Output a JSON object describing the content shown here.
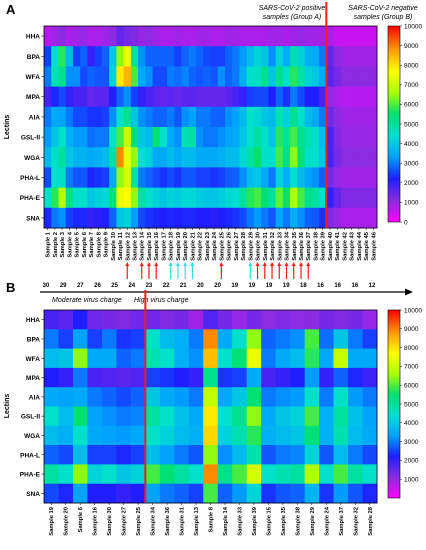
{
  "figure": {
    "panel_a_label": "A",
    "panel_b_label": "B",
    "group_a_label_line1": "SARS-CoV-2 positive",
    "group_a_label_line2": "samples (Group A)",
    "group_b_label_line1": "SARS-CoV-2 negative",
    "group_b_label_line2": "samples (Group B)",
    "moderate_label": "Moderate virus charge",
    "high_label": "High virus charge"
  },
  "palette": {
    "stops": [
      "#ff00ff",
      "#8a2be2",
      "#1e1eff",
      "#00a0ff",
      "#00e0d0",
      "#00e070",
      "#aaff00",
      "#ffff00",
      "#ff9900",
      "#ff0000"
    ],
    "marker_red": "#ff1a1a",
    "marker_cyan": "#33dddd"
  },
  "chart_data": [
    {
      "type": "heatmap",
      "ylabel": "Lectins",
      "rows": [
        "HHA",
        "BPA",
        "WFA",
        "MPA",
        "AIA",
        "GSL-II",
        "WGA",
        "PHA-L",
        "PHA-E",
        "SNA"
      ],
      "columns": [
        "Sample 1",
        "Sample 2",
        "Sample 3",
        "Sample 4",
        "Sample 5",
        "Sample 6",
        "Sample 7",
        "Sample 8",
        "Sample 9",
        "Sample 10",
        "Sample 11",
        "Sample 12",
        "Sample 13",
        "Sample 14",
        "Sample 15",
        "Sample 16",
        "Sample 17",
        "Sample 18",
        "Sample 19",
        "Sample 20",
        "Sample 21",
        "Sample 22",
        "Sample 23",
        "Sample 24",
        "Sample 25",
        "Sample 26",
        "Sample 27",
        "Sample 28",
        "Sample 29",
        "Sample 30",
        "Sample 31",
        "Sample 32",
        "Sample 33",
        "Sample 34",
        "Sample 35",
        "Sample 36",
        "Sample 37",
        "Sample 38",
        "Sample 39",
        "Sample 40",
        "Sample 41",
        "Sample 42",
        "Sample 43",
        "Sample 44",
        "Sample 45",
        "Sample 46"
      ],
      "colorbar": {
        "min": 0,
        "max": 10000,
        "ticks": [
          0,
          1000,
          2000,
          3000,
          4000,
          5000,
          6000,
          7000,
          8000,
          9000,
          10000
        ]
      },
      "group_split_after_column": 39,
      "values": [
        [
          700,
          900,
          1100,
          800,
          900,
          1000,
          800,
          800,
          900,
          1100,
          1500,
          1300,
          1200,
          1000,
          1100,
          900,
          800,
          800,
          900,
          800,
          800,
          900,
          900,
          800,
          800,
          900,
          900,
          800,
          800,
          800,
          800,
          900,
          900,
          800,
          900,
          1000,
          900,
          900,
          900,
          800,
          500,
          500,
          500,
          500,
          500,
          500
        ],
        [
          2500,
          4500,
          5800,
          3800,
          2500,
          2800,
          2000,
          2500,
          2800,
          4000,
          6500,
          7500,
          5000,
          3200,
          2800,
          2800,
          2800,
          2800,
          2500,
          2800,
          3000,
          2800,
          2600,
          2500,
          2500,
          2800,
          3000,
          3300,
          3800,
          4200,
          4000,
          3200,
          4200,
          3600,
          4800,
          4200,
          3600,
          3500,
          3000,
          1500,
          1100,
          900,
          900,
          900,
          900,
          900
        ],
        [
          3000,
          4800,
          5200,
          3200,
          3200,
          2600,
          2800,
          2700,
          2700,
          4200,
          8000,
          8600,
          6000,
          3500,
          3200,
          2600,
          2600,
          3000,
          2900,
          3100,
          2800,
          2700,
          2800,
          2700,
          3200,
          2800,
          3000,
          3600,
          4500,
          4600,
          5200,
          4000,
          5200,
          4500,
          5800,
          5000,
          4200,
          4000,
          3500,
          1600,
          1300,
          1100,
          1100,
          1100,
          1100,
          1100
        ],
        [
          1800,
          2300,
          2600,
          2000,
          1800,
          1800,
          1500,
          1600,
          1600,
          2200,
          2800,
          3200,
          2500,
          2000,
          1800,
          1600,
          1500,
          1600,
          1500,
          1600,
          1600,
          1500,
          1500,
          1500,
          1500,
          1600,
          1800,
          2000,
          2500,
          2600,
          2600,
          2200,
          2800,
          2400,
          3000,
          2600,
          2200,
          2200,
          1800,
          1000,
          800,
          700,
          700,
          700,
          700,
          700
        ],
        [
          3000,
          3500,
          3400,
          3000,
          2600,
          2600,
          2400,
          2400,
          2500,
          3200,
          4500,
          5200,
          4000,
          3200,
          3000,
          2800,
          2800,
          3000,
          2700,
          3200,
          3400,
          3000,
          3000,
          2800,
          2800,
          3200,
          3400,
          3800,
          4500,
          4300,
          4000,
          3800,
          4800,
          4200,
          5200,
          4500,
          3800,
          3500,
          3000,
          1400,
          1100,
          900,
          900,
          900,
          900,
          900
        ],
        [
          3300,
          4000,
          4500,
          3600,
          3300,
          3300,
          2900,
          3000,
          3000,
          4500,
          6000,
          7000,
          5500,
          4000,
          3800,
          5500,
          4500,
          3500,
          3200,
          4800,
          5000,
          3200,
          3000,
          3000,
          3200,
          3400,
          3500,
          4000,
          4500,
          5000,
          4500,
          4000,
          5800,
          5000,
          6000,
          5200,
          4800,
          4500,
          3800,
          1800,
          1200,
          1000,
          1000,
          1000,
          1000,
          1000
        ],
        [
          3800,
          4500,
          5000,
          4000,
          3700,
          3700,
          3500,
          3600,
          3800,
          5000,
          9000,
          7500,
          6500,
          4500,
          4200,
          3500,
          3500,
          3800,
          3500,
          3800,
          3800,
          3500,
          3500,
          3500,
          3600,
          3800,
          3800,
          4300,
          5000,
          5600,
          4600,
          4500,
          6000,
          5200,
          6500,
          5500,
          4500,
          4500,
          4000,
          1800,
          1300,
          1100,
          1100,
          1100,
          1100,
          1100
        ],
        [
          2600,
          4500,
          4600,
          3000,
          2700,
          2700,
          2300,
          2400,
          2500,
          3500,
          6500,
          7200,
          5000,
          3000,
          2800,
          2600,
          2400,
          2600,
          2400,
          2700,
          2700,
          2500,
          2500,
          2400,
          2500,
          2700,
          2800,
          3200,
          3800,
          4000,
          3500,
          3000,
          4200,
          3600,
          4500,
          3800,
          3400,
          3200,
          2800,
          1300,
          1000,
          900,
          900,
          900,
          900,
          900
        ],
        [
          4500,
          5800,
          6800,
          5200,
          4500,
          4500,
          4000,
          4200,
          4300,
          5500,
          7500,
          7800,
          6500,
          5000,
          4500,
          4200,
          4000,
          4200,
          4100,
          4300,
          4300,
          4100,
          4000,
          4000,
          4100,
          4300,
          4400,
          5000,
          5800,
          6000,
          5500,
          5000,
          6200,
          5600,
          6800,
          6000,
          5200,
          5000,
          4600,
          2000,
          1500,
          1200,
          1200,
          1200,
          1200,
          1200
        ],
        [
          2300,
          3000,
          3200,
          2500,
          2300,
          2300,
          2000,
          2100,
          2200,
          2800,
          4000,
          4200,
          3300,
          2600,
          2400,
          2300,
          2200,
          2300,
          2200,
          2300,
          2300,
          2200,
          2200,
          2100,
          2200,
          2300,
          2400,
          2600,
          3000,
          3300,
          3000,
          2700,
          3400,
          3000,
          3600,
          3200,
          2800,
          2700,
          2400,
          1200,
          1000,
          800,
          800,
          800,
          800,
          800
        ]
      ]
    },
    {
      "type": "heatmap",
      "ylabel": "Lectins",
      "rows": [
        "HHA",
        "BPA",
        "WFA",
        "MPA",
        "AIA",
        "GSL-II",
        "WGA",
        "PHA-L",
        "PHA-E",
        "SNA"
      ],
      "columns": [
        "Sample 19",
        "Sample 20",
        "Sample 6",
        "Sample 16",
        "Sample 30",
        "Sample 27",
        "Sample 25",
        "Sample 34",
        "Sample 36",
        "Sample 31",
        "Sample 13",
        "Sample 8",
        "Sample 14",
        "Sample 33",
        "Sample 39",
        "Sample 15",
        "Sample 35",
        "Sample 38",
        "Sample 29",
        "Sample 24",
        "Sample 37",
        "Sample 32",
        "Sample 28"
      ],
      "colorbar": {
        "min": 0,
        "max": 10000,
        "ticks": [
          1000,
          2000,
          3000,
          4000,
          5000,
          6000,
          7000,
          8000,
          9000,
          10000
        ]
      },
      "split_after_column": 7,
      "values": [
        [
          1800,
          1600,
          2200,
          1400,
          1300,
          1200,
          1400,
          1400,
          1200,
          1300,
          900,
          1700,
          1300,
          1000,
          1300,
          1100,
          1200,
          1100,
          1100,
          1300,
          1200,
          1300,
          1000
        ],
        [
          3000,
          2500,
          3400,
          2500,
          3000,
          2400,
          2500,
          4500,
          3800,
          3600,
          3000,
          9000,
          3500,
          4500,
          6500,
          2800,
          3000,
          3200,
          6000,
          2900,
          4000,
          3000,
          2500
        ],
        [
          3800,
          4000,
          6500,
          3500,
          3500,
          2800,
          3000,
          4800,
          4500,
          3600,
          3200,
          8500,
          4500,
          5500,
          7500,
          3000,
          3500,
          3800,
          5800,
          3500,
          7000,
          3500,
          3500
        ],
        [
          2200,
          2000,
          3000,
          1800,
          1700,
          1600,
          1700,
          2500,
          2400,
          2200,
          2000,
          5200,
          2400,
          2500,
          3500,
          1800,
          2000,
          2200,
          3300,
          2000,
          2800,
          2300,
          1900
        ],
        [
          3500,
          3400,
          3500,
          3000,
          2800,
          2600,
          2800,
          4000,
          3500,
          3300,
          3000,
          7000,
          3500,
          4000,
          5500,
          3000,
          3200,
          3300,
          4500,
          3000,
          4500,
          3300,
          3000
        ],
        [
          4500,
          3800,
          5500,
          3400,
          3200,
          3000,
          3100,
          5000,
          4500,
          3900,
          3500,
          8000,
          4500,
          5200,
          6500,
          3500,
          4000,
          4200,
          6000,
          3600,
          5000,
          3900,
          3400
        ],
        [
          3800,
          3600,
          4500,
          3500,
          3400,
          3300,
          3500,
          4500,
          4200,
          3800,
          3600,
          8200,
          4200,
          4800,
          5800,
          3600,
          3800,
          4000,
          5500,
          3600,
          4800,
          3800,
          3500
        ],
        [
          2800,
          2600,
          3800,
          2500,
          2500,
          2300,
          2500,
          3800,
          3400,
          3000,
          2700,
          6500,
          3200,
          3800,
          4800,
          2700,
          3000,
          3100,
          4200,
          2700,
          3800,
          3000,
          2600
        ],
        [
          5000,
          4500,
          6500,
          4200,
          4500,
          4000,
          4200,
          6000,
          5500,
          5000,
          4500,
          9000,
          5200,
          6000,
          7200,
          4500,
          4800,
          5000,
          6800,
          4500,
          6000,
          5000,
          4500
        ],
        [
          2600,
          2300,
          3400,
          2200,
          2200,
          2000,
          2200,
          3400,
          3000,
          2800,
          2500,
          6000,
          2800,
          3300,
          4200,
          2400,
          2700,
          2800,
          3700,
          2400,
          3300,
          2700,
          2300
        ]
      ]
    }
  ],
  "markers": {
    "virus_charges_printed": [
      "30",
      "29",
      "27",
      "26",
      "25",
      "24",
      "23",
      "22",
      "21",
      "20",
      "20",
      "19",
      "19",
      "19",
      "19",
      "18",
      "16",
      "16",
      "16",
      "12"
    ],
    "red_arrow_sample_columns": [
      12,
      14,
      15,
      16,
      25,
      30,
      31,
      32,
      33,
      34,
      35,
      36,
      37
    ],
    "cyan_arrow_sample_columns": [
      18,
      19,
      20,
      21,
      29
    ]
  }
}
